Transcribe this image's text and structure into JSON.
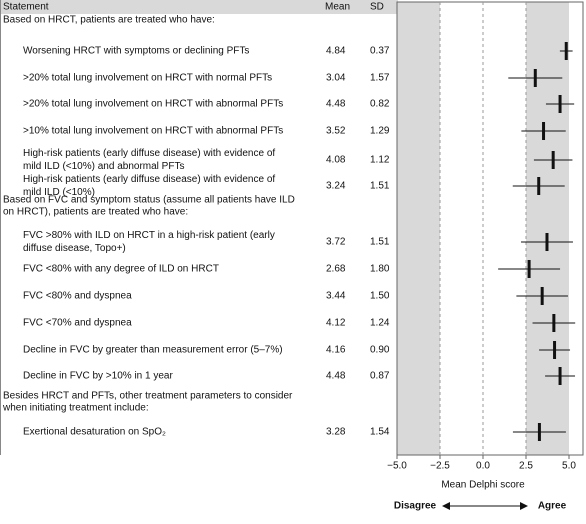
{
  "chart_data": {
    "type": "forest",
    "columns": [
      "Statement",
      "Mean",
      "SD"
    ],
    "sections": [
      {
        "heading": [
          "Based on HRCT, patients are treated who have:"
        ],
        "rows": [
          {
            "statement": [
              "Worsening HRCT with symptoms or declining PFTs"
            ],
            "mean": 4.84,
            "sd": 0.37
          },
          {
            "statement": [
              ">20% total lung involvement on HRCT with normal PFTs"
            ],
            "mean": 3.04,
            "sd": 1.57
          },
          {
            "statement": [
              ">20% total lung involvement on HRCT with abnormal PFTs"
            ],
            "mean": 4.48,
            "sd": 0.82
          },
          {
            "statement": [
              ">10% total lung involvement on HRCT with abnormal PFTs"
            ],
            "mean": 3.52,
            "sd": 1.29
          },
          {
            "statement": [
              "High-risk patients (early diffuse disease) with evidence of",
              "mild ILD (<10%) and abnormal PFTs"
            ],
            "mean": 4.08,
            "sd": 1.12
          },
          {
            "statement": [
              "High-risk patients (early diffuse disease) with evidence of",
              "mild ILD (<10%)"
            ],
            "mean": 3.24,
            "sd": 1.51
          }
        ]
      },
      {
        "heading": [
          "Based on FVC and symptom status (assume all patients have ILD",
          "on HRCT), patients are treated who have:"
        ],
        "rows": [
          {
            "statement": [
              "FVC >80% with ILD on HRCT in a high-risk patient (early",
              "diffuse disease, Topo+)"
            ],
            "mean": 3.72,
            "sd": 1.51
          },
          {
            "statement": [
              "FVC <80% with any degree of ILD on HRCT"
            ],
            "mean": 2.68,
            "sd": 1.8,
            "sd_label": "1.80"
          },
          {
            "statement": [
              "FVC <80% and dyspnea"
            ],
            "mean": 3.44,
            "sd": 1.5,
            "sd_label": "1.50"
          },
          {
            "statement": [
              "FVC <70% and dyspnea"
            ],
            "mean": 4.12,
            "sd": 1.24
          },
          {
            "statement": [
              "Decline in FVC by greater than measurement error (5–7%)"
            ],
            "mean": 4.16,
            "sd": 0.9,
            "sd_label": "0.90"
          },
          {
            "statement": [
              "Decline in FVC by >10% in 1 year"
            ],
            "mean": 4.48,
            "sd": 0.87
          }
        ]
      },
      {
        "heading": [
          "Besides HRCT and PFTs, other treatment parameters to consider",
          "when initiating treatment include:"
        ],
        "rows": [
          {
            "statement": [
              "Exertional desaturation on SpO₂"
            ],
            "mean": 3.28,
            "sd": 1.54
          }
        ]
      }
    ],
    "xlim": [
      -5,
      5
    ],
    "xticks": [
      {
        "value": -5,
        "label": "−5.0"
      },
      {
        "value": -2.5,
        "label": "−2.5"
      },
      {
        "value": 0,
        "label": "0.0"
      },
      {
        "value": 2.5,
        "label": "2.5"
      },
      {
        "value": 5,
        "label": "5.0"
      }
    ],
    "ref_lines": [
      -2.5,
      0,
      2.5
    ],
    "shaded": [
      [
        -5,
        -2.5
      ],
      [
        2.5,
        5
      ]
    ],
    "xlabel": "Mean Delphi score",
    "left_label": "Disagree",
    "right_label": "Agree"
  }
}
